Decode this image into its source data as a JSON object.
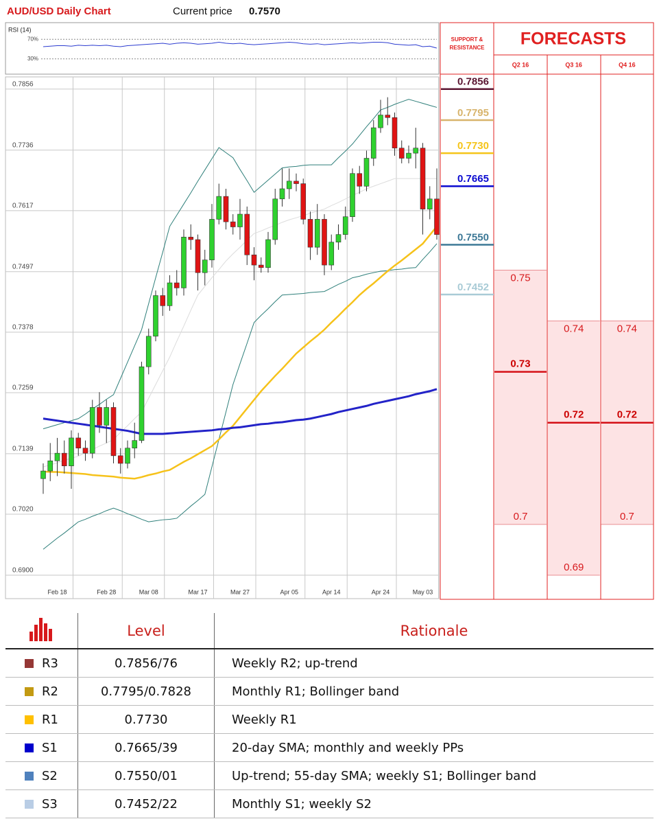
{
  "header": {
    "title": "AUD/USD Daily Chart",
    "price_label": "Current price",
    "price": "0.7570"
  },
  "chart_data": [
    {
      "type": "line",
      "title": "RSI (14)",
      "color": "#2b3bd0",
      "ylim": [
        0,
        100
      ],
      "yticks": [
        {
          "value": 70,
          "label": "70%"
        },
        {
          "value": 30,
          "label": "30%"
        }
      ],
      "values": [
        55,
        56,
        57,
        57,
        56,
        58,
        57,
        58,
        57,
        58,
        56,
        55,
        57,
        58,
        59,
        60,
        61,
        62,
        60,
        62,
        63,
        62,
        60,
        61,
        62,
        64,
        62,
        61,
        62,
        60,
        59,
        60,
        61,
        62,
        63,
        64,
        63,
        61,
        60,
        61,
        59,
        60,
        61,
        62,
        63,
        62,
        63,
        64,
        64,
        63,
        60,
        59,
        58,
        59,
        55,
        56,
        52
      ]
    },
    {
      "type": "candlestick",
      "ylim": [
        0.6854,
        0.788
      ],
      "yticks": [
        0.7856,
        0.7736,
        0.7617,
        0.7497,
        0.7378,
        0.7259,
        0.7139,
        {
          "value": 0.702,
          "label": "0.7020"
        },
        {
          "value": 0.69,
          "label": "0.6900"
        }
      ],
      "grid": true,
      "up_color": "#2fd12f",
      "down_color": "#e01414",
      "categories": [
        null,
        null,
        "Feb 18",
        null,
        null,
        null,
        null,
        null,
        null,
        "Feb 28",
        null,
        null,
        null,
        null,
        null,
        "Mar 08",
        null,
        null,
        null,
        null,
        null,
        null,
        "Mar 17",
        null,
        null,
        null,
        null,
        null,
        "Mar 27",
        null,
        null,
        null,
        null,
        null,
        null,
        "Apr 05",
        null,
        null,
        null,
        null,
        null,
        "Apr 14",
        null,
        null,
        null,
        null,
        null,
        null,
        "Apr 24",
        null,
        null,
        null,
        null,
        null,
        "May 03",
        null,
        null
      ],
      "open": [
        0.709,
        0.7105,
        0.7125,
        0.714,
        0.7115,
        0.717,
        0.715,
        0.714,
        0.723,
        0.7195,
        0.723,
        0.7135,
        0.712,
        0.715,
        0.7165,
        0.731,
        0.737,
        0.745,
        0.743,
        0.7475,
        0.7465,
        0.7565,
        0.756,
        0.7495,
        0.752,
        0.76,
        0.7645,
        0.7595,
        0.7585,
        0.761,
        0.753,
        0.751,
        0.7505,
        0.756,
        0.764,
        0.766,
        0.7675,
        0.767,
        0.76,
        0.7545,
        0.76,
        0.751,
        0.7555,
        0.757,
        0.7605,
        0.769,
        0.7665,
        0.772,
        0.778,
        0.7805,
        0.78,
        0.774,
        0.772,
        0.773,
        0.774,
        0.762,
        0.764
      ],
      "high": [
        0.712,
        0.716,
        0.717,
        0.7165,
        0.7185,
        0.718,
        0.7165,
        0.7245,
        0.726,
        0.7245,
        0.724,
        0.715,
        0.7165,
        0.72,
        0.732,
        0.7385,
        0.746,
        0.7465,
        0.749,
        0.75,
        0.758,
        0.759,
        0.757,
        0.754,
        0.763,
        0.767,
        0.766,
        0.761,
        0.764,
        0.7625,
        0.7545,
        0.7525,
        0.7575,
        0.766,
        0.77,
        0.77,
        0.769,
        0.768,
        0.7615,
        0.763,
        0.761,
        0.757,
        0.759,
        0.7625,
        0.77,
        0.7705,
        0.7735,
        0.7795,
        0.7835,
        0.784,
        0.781,
        0.7755,
        0.7745,
        0.778,
        0.775,
        0.7665,
        0.77
      ],
      "low": [
        0.706,
        0.7085,
        0.7095,
        0.71,
        0.707,
        0.7135,
        0.7125,
        0.713,
        0.718,
        0.716,
        0.712,
        0.71,
        0.711,
        0.713,
        0.716,
        0.7295,
        0.736,
        0.741,
        0.742,
        0.745,
        0.745,
        0.754,
        0.746,
        0.747,
        0.7505,
        0.759,
        0.758,
        0.757,
        0.756,
        0.751,
        0.748,
        0.7495,
        0.7495,
        0.755,
        0.7625,
        0.764,
        0.7655,
        0.759,
        0.752,
        0.753,
        0.749,
        0.75,
        0.754,
        0.756,
        0.7595,
        0.765,
        0.7655,
        0.7705,
        0.777,
        0.7785,
        0.7725,
        0.771,
        0.771,
        0.77,
        0.757,
        0.76,
        0.756
      ],
      "close": [
        0.7105,
        0.7125,
        0.714,
        0.7115,
        0.717,
        0.715,
        0.714,
        0.723,
        0.7195,
        0.723,
        0.7135,
        0.712,
        0.715,
        0.7165,
        0.731,
        0.737,
        0.745,
        0.743,
        0.7475,
        0.7465,
        0.7565,
        0.756,
        0.7495,
        0.752,
        0.76,
        0.7645,
        0.7595,
        0.7585,
        0.761,
        0.753,
        0.751,
        0.7505,
        0.756,
        0.764,
        0.766,
        0.7675,
        0.767,
        0.76,
        0.7545,
        0.76,
        0.751,
        0.7555,
        0.757,
        0.7605,
        0.769,
        0.7665,
        0.772,
        0.778,
        0.7805,
        0.78,
        0.774,
        0.772,
        0.773,
        0.774,
        0.762,
        0.764,
        0.757
      ],
      "series": [
        {
          "color": "#dcdcdc",
          "width": 1,
          "values": [
            0.7113,
            0.7117,
            0.7121,
            0.7126,
            0.713,
            0.7134,
            0.7141,
            0.7147,
            0.7154,
            0.716,
            0.7167,
            0.7181,
            0.7194,
            0.7208,
            0.7221,
            0.7248,
            0.7275,
            0.7302,
            0.7329,
            0.736,
            0.739,
            0.7421,
            0.7451,
            0.7468,
            0.7485,
            0.7501,
            0.7518,
            0.7532,
            0.7545,
            0.7559,
            0.7572,
            0.7577,
            0.7583,
            0.7588,
            0.7594,
            0.7599,
            0.7603,
            0.7607,
            0.7612,
            0.7616,
            0.762,
            0.7627,
            0.7633,
            0.764,
            0.7647,
            0.7653,
            0.766,
            0.7665,
            0.767,
            0.7675,
            0.768,
            0.768,
            0.768,
            0.768,
            0.768,
            0.768,
            0.768
          ]
        },
        {
          "color": "#2e7f7a",
          "width": 1,
          "values": [
            0.7188,
            0.7192,
            0.7196,
            0.72,
            0.7204,
            0.7208,
            0.7217,
            0.7227,
            0.7236,
            0.7246,
            0.7255,
            0.7287,
            0.7319,
            0.7351,
            0.7383,
            0.7434,
            0.7485,
            0.7535,
            0.7586,
            0.7608,
            0.763,
            0.7652,
            0.7675,
            0.7697,
            0.7719,
            0.7741,
            0.7731,
            0.7721,
            0.7698,
            0.7676,
            0.7653,
            0.7665,
            0.7677,
            0.7689,
            0.7701,
            0.7703,
            0.7704,
            0.7706,
            0.7707,
            0.7707,
            0.7707,
            0.7707,
            0.7721,
            0.7734,
            0.7748,
            0.7765,
            0.7782,
            0.7798,
            0.7815,
            0.782,
            0.7826,
            0.7831,
            0.7836,
            0.7832,
            0.7828,
            0.7824,
            0.782
          ]
        },
        {
          "color": "#2e7f7a",
          "width": 1,
          "values": [
            0.6951,
            0.6962,
            0.6973,
            0.6983,
            0.6994,
            0.7005,
            0.701,
            0.7016,
            0.7021,
            0.7027,
            0.7032,
            0.7027,
            0.7021,
            0.7016,
            0.701,
            0.7005,
            0.7007,
            0.7009,
            0.701,
            0.7012,
            0.7024,
            0.7036,
            0.7047,
            0.7059,
            0.7113,
            0.7167,
            0.7221,
            0.7275,
            0.7316,
            0.7356,
            0.7397,
            0.7411,
            0.7424,
            0.7438,
            0.7451,
            0.7452,
            0.7453,
            0.7454,
            0.7456,
            0.7457,
            0.7458,
            0.7465,
            0.7472,
            0.7478,
            0.7485,
            0.7488,
            0.7492,
            0.7495,
            0.7498,
            0.7499,
            0.7501,
            0.7502,
            0.7504,
            0.7505,
            0.7521,
            0.7536,
            0.7552
          ]
        },
        {
          "color": "#f6c21a",
          "width": 2.5,
          "values": [
            0.7104,
            0.7103,
            0.7103,
            0.7102,
            0.7101,
            0.71,
            0.7099,
            0.7097,
            0.7096,
            0.7095,
            0.7094,
            0.7092,
            0.7091,
            0.709,
            0.7093,
            0.7097,
            0.71,
            0.7104,
            0.7107,
            0.7115,
            0.7123,
            0.713,
            0.7138,
            0.7146,
            0.7154,
            0.7167,
            0.7181,
            0.7194,
            0.7211,
            0.7228,
            0.7245,
            0.7262,
            0.7277,
            0.7292,
            0.7306,
            0.7321,
            0.7336,
            0.7348,
            0.736,
            0.7371,
            0.7383,
            0.7397,
            0.741,
            0.7424,
            0.7437,
            0.7451,
            0.7463,
            0.7474,
            0.7486,
            0.7498,
            0.7509,
            0.7519,
            0.753,
            0.7541,
            0.7552,
            0.7569,
            0.7586
          ]
        },
        {
          "color": "#2323c8",
          "width": 3,
          "values": [
            0.7208,
            0.7206,
            0.7204,
            0.7202,
            0.72,
            0.7198,
            0.7196,
            0.7194,
            0.7192,
            0.719,
            0.7188,
            0.7186,
            0.7184,
            0.7181,
            0.7178,
            0.7178,
            0.7178,
            0.7178,
            0.7179,
            0.718,
            0.7181,
            0.7182,
            0.7183,
            0.7184,
            0.7185,
            0.7187,
            0.7188,
            0.719,
            0.7191,
            0.7193,
            0.7195,
            0.7197,
            0.7198,
            0.72,
            0.7201,
            0.7203,
            0.7205,
            0.7206,
            0.7208,
            0.7211,
            0.7214,
            0.7217,
            0.7221,
            0.7224,
            0.7227,
            0.723,
            0.7233,
            0.7237,
            0.724,
            0.7243,
            0.7246,
            0.7249,
            0.7252,
            0.7256,
            0.7259,
            0.7262,
            0.7266
          ]
        }
      ],
      "levels": {
        "title": "SUPPORT & RESISTANCE",
        "values": [
          0.7856,
          0.7795,
          0.773,
          0.7665,
          0.755,
          0.7452
        ],
        "value_labels": [
          "0.7856",
          "0.7795",
          "0.7730",
          "0.7665",
          "0.7550",
          "0.7452"
        ],
        "colors": [
          "#5b1632",
          "#d8b46c",
          "#f5c418",
          "#0a0ad0",
          "#3c7896",
          "#a9cbd6"
        ]
      }
    },
    {
      "type": "range",
      "title": "FORECASTS",
      "ylim": [
        0.6854,
        0.788
      ],
      "categories": [
        "Q2 16",
        "Q3 16",
        "Q4 16"
      ],
      "high": [
        0.75,
        0.74,
        0.74
      ],
      "median": [
        0.73,
        0.72,
        0.72
      ],
      "low": [
        0.7,
        0.69,
        0.7
      ]
    }
  ],
  "table": {
    "columns": [
      "Level",
      "Rationale"
    ],
    "colors": [
      "#953735",
      "#c39a12",
      "#ffc000",
      "#0000cc",
      "#4f81bd",
      "#b9cde5"
    ],
    "rows": [
      [
        "R3",
        "0.7856/76",
        "Weekly R2; up-trend"
      ],
      [
        "R2",
        "0.7795/0.7828",
        "Monthly R1; Bollinger band"
      ],
      [
        "R1",
        "0.7730",
        "Weekly R1"
      ],
      [
        "S1",
        "0.7665/39",
        "20-day SMA; monthly and weekly PPs"
      ],
      [
        "S2",
        "0.7550/01",
        "Up-trend; 55-day SMA; weekly S1; Bollinger band"
      ],
      [
        "S3",
        "0.7452/22",
        "Monthly S1; weekly S2"
      ]
    ]
  }
}
